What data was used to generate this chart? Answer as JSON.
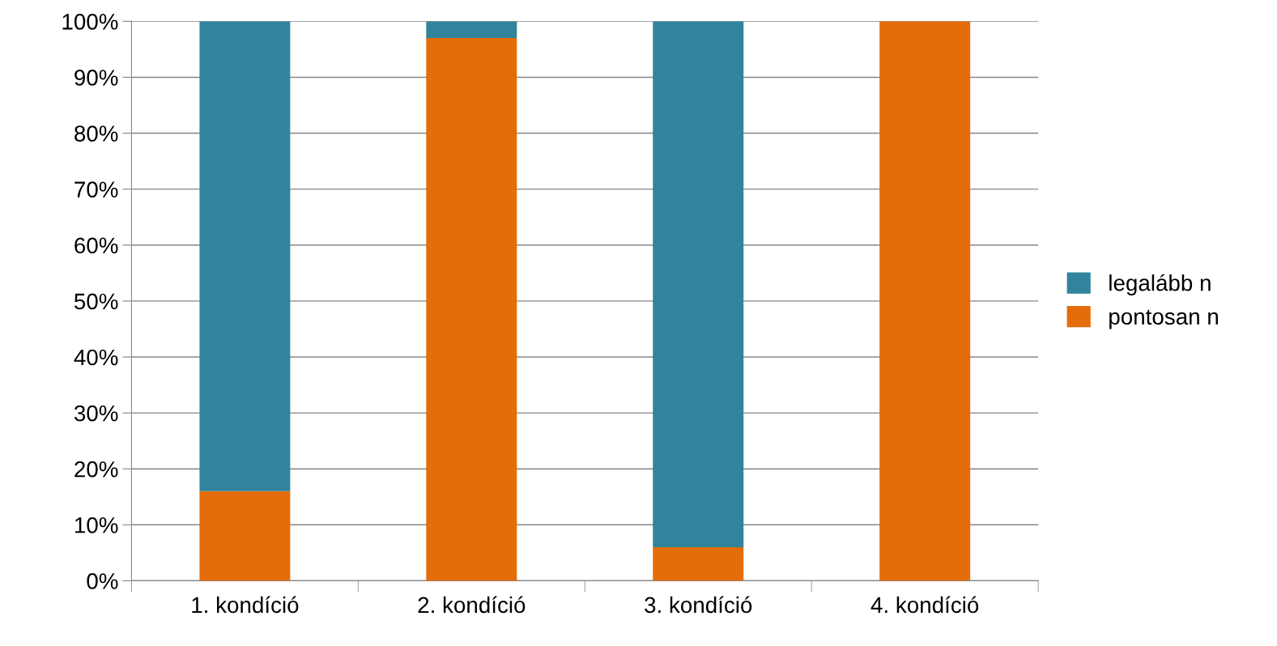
{
  "chart_data": {
    "type": "bar",
    "stacked": true,
    "categories": [
      "1. kondíció",
      "2. kondíció",
      "3. kondíció",
      "4. kondíció"
    ],
    "series": [
      {
        "name": "pontosan n",
        "color": "#e46c0a",
        "values": [
          16,
          97,
          6,
          100
        ]
      },
      {
        "name": "legalább n",
        "color": "#31849b",
        "values": [
          84,
          3,
          94,
          0
        ]
      }
    ],
    "ylim": [
      0,
      100
    ],
    "yticks": [
      {
        "value": 0,
        "label": "0%"
      },
      {
        "value": 10,
        "label": "10%"
      },
      {
        "value": 20,
        "label": "20%"
      },
      {
        "value": 30,
        "label": "30%"
      },
      {
        "value": 40,
        "label": "40%"
      },
      {
        "value": 50,
        "label": "50%"
      },
      {
        "value": 60,
        "label": "60%"
      },
      {
        "value": 70,
        "label": "70%"
      },
      {
        "value": 80,
        "label": "80%"
      },
      {
        "value": 90,
        "label": "90%"
      },
      {
        "value": 100,
        "label": "100%"
      }
    ],
    "grid": "y",
    "legend": "right"
  }
}
